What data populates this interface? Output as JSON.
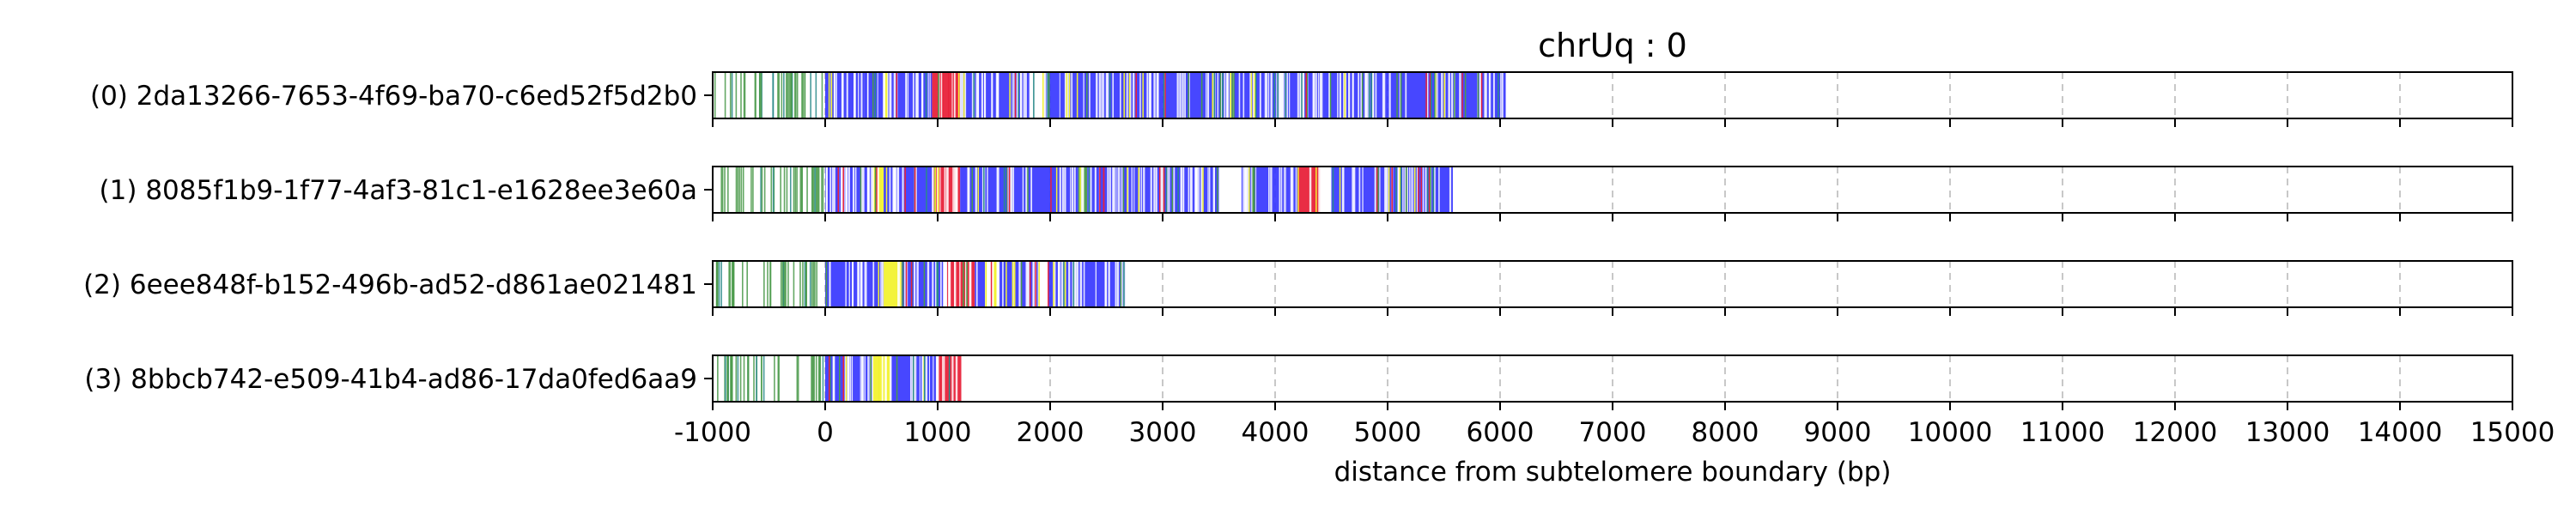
{
  "chart_data": {
    "type": "barcode",
    "title": "chrUq : 0",
    "xlabel": "distance from subtelomere boundary (bp)",
    "ylabel": "",
    "xlim": [
      -1000,
      15000
    ],
    "xticks": [
      -1000,
      0,
      1000,
      2000,
      3000,
      4000,
      5000,
      6000,
      7000,
      8000,
      9000,
      10000,
      11000,
      12000,
      13000,
      14000,
      15000
    ],
    "grid": "vertical-dashed",
    "colors": {
      "green": "#4a9a4a",
      "blue": "#3333ff",
      "yellow": "#f2f230",
      "red": "#e8223a",
      "teal": "#2a8a8a",
      "grid": "#c8c8c8"
    },
    "series": [
      {
        "name": "(0) 2da13266-7653-4f69-ba70-c6ed52f5d2b0",
        "end": 6050,
        "segments": [
          {
            "start": 0,
            "end": 350,
            "color": "blue"
          },
          {
            "start": 350,
            "end": 520,
            "color": "blue"
          },
          {
            "start": 520,
            "end": 560,
            "color": "yellow"
          },
          {
            "start": 560,
            "end": 950,
            "color": "blue"
          },
          {
            "start": 950,
            "end": 1200,
            "color": "red"
          },
          {
            "start": 1200,
            "end": 1700,
            "color": "blue"
          },
          {
            "start": 1700,
            "end": 1820,
            "color": "blue"
          },
          {
            "start": 1950,
            "end": 6050,
            "color": "blue"
          }
        ]
      },
      {
        "name": "(1) 8085f1b9-1f77-4af3-81c1-e1628ee3e60a",
        "end": 5580,
        "segments": [
          {
            "start": 0,
            "end": 420,
            "color": "blue"
          },
          {
            "start": 420,
            "end": 520,
            "color": "yellow"
          },
          {
            "start": 520,
            "end": 960,
            "color": "blue"
          },
          {
            "start": 960,
            "end": 1200,
            "color": "red"
          },
          {
            "start": 1200,
            "end": 2250,
            "color": "blue"
          },
          {
            "start": 2250,
            "end": 2330,
            "color": "green"
          },
          {
            "start": 2330,
            "end": 3500,
            "color": "blue"
          },
          {
            "start": 3700,
            "end": 4200,
            "color": "blue"
          },
          {
            "start": 4200,
            "end": 4400,
            "color": "red"
          },
          {
            "start": 4500,
            "end": 5580,
            "color": "blue"
          }
        ]
      },
      {
        "name": "(2) 6eee848f-b152-496b-ad52-d861ae021481",
        "end": 2670,
        "segments": [
          {
            "start": 0,
            "end": 520,
            "color": "blue"
          },
          {
            "start": 520,
            "end": 680,
            "color": "yellow"
          },
          {
            "start": 680,
            "end": 1050,
            "color": "blue"
          },
          {
            "start": 1080,
            "end": 1330,
            "color": "red"
          },
          {
            "start": 1330,
            "end": 1420,
            "color": "blue"
          },
          {
            "start": 1550,
            "end": 1900,
            "color": "blue"
          },
          {
            "start": 1980,
            "end": 2670,
            "color": "blue"
          }
        ]
      },
      {
        "name": "(3) 8bbcb742-e509-41b4-ad86-17da0fed6aa9",
        "end": 1210,
        "segments": [
          {
            "start": 0,
            "end": 420,
            "color": "blue"
          },
          {
            "start": 420,
            "end": 580,
            "color": "yellow"
          },
          {
            "start": 580,
            "end": 1000,
            "color": "blue"
          },
          {
            "start": 1000,
            "end": 1210,
            "color": "red"
          }
        ]
      }
    ]
  }
}
